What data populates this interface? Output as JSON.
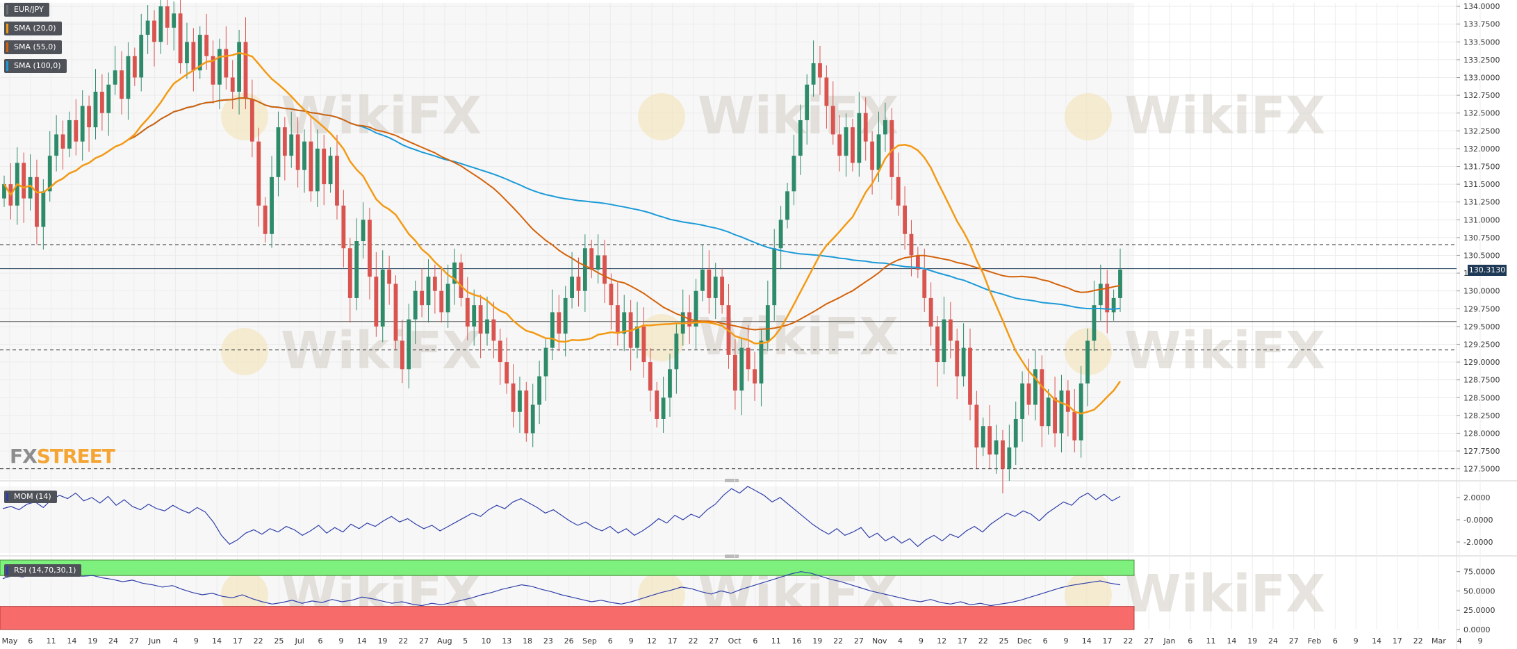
{
  "symbol": "EUR/JPY",
  "legend": [
    {
      "label": "EUR/JPY",
      "color": "#4f5258"
    },
    {
      "label": "SMA (20,0)",
      "color": "#f39a14"
    },
    {
      "label": "SMA (55,0)",
      "color": "#d4620a"
    },
    {
      "label": "SMA (100,0)",
      "color": "#1b9ad8"
    }
  ],
  "price_label": "130.3130",
  "brand": {
    "fx": "FX",
    "street": "STREET"
  },
  "watermark": "WikiFX",
  "mom_label": "MOM (14)",
  "rsi_label": "RSI (14,70,30,1)",
  "colors": {
    "up": "#2e8b6a",
    "down": "#d9534f",
    "sma20": "#f39a14",
    "sma55": "#d4620a",
    "sma100": "#1b9ad8",
    "osc": "#2f3fa8",
    "rsi_over": "#7df07d",
    "rsi_under": "#f76b6b"
  },
  "chart_data": [
    {
      "type": "candlestick",
      "title": "",
      "ylim": [
        127.35,
        134.05
      ],
      "y_ticks": [
        "134.0000",
        "133.7500",
        "133.5000",
        "133.2500",
        "133.0000",
        "132.7500",
        "132.5000",
        "132.2500",
        "132.0000",
        "131.7500",
        "131.5000",
        "131.2500",
        "131.0000",
        "130.7500",
        "130.5000",
        "130.2500",
        "130.0000",
        "129.7500",
        "129.5000",
        "129.2500",
        "129.0000",
        "128.7500",
        "128.5000",
        "128.2500",
        "128.0000",
        "127.7500",
        "127.5000"
      ],
      "last_price": 130.313,
      "horizontal_lines": [
        {
          "value": 130.65,
          "style": "dashed"
        },
        {
          "value": 130.313,
          "style": "solid-blue"
        },
        {
          "value": 129.57,
          "style": "solid"
        },
        {
          "value": 129.17,
          "style": "dashed"
        },
        {
          "value": 127.5,
          "style": "dashed"
        }
      ],
      "x_labels": [
        "May",
        "6",
        "11",
        "14",
        "19",
        "24",
        "27",
        "Jun",
        "4",
        "9",
        "14",
        "17",
        "22",
        "25",
        "Jul",
        "6",
        "9",
        "14",
        "19",
        "22",
        "27",
        "Aug",
        "5",
        "10",
        "13",
        "18",
        "23",
        "26",
        "Sep",
        "6",
        "9",
        "12",
        "17",
        "22",
        "27",
        "Oct",
        "6",
        "11",
        "16",
        "19",
        "22",
        "27",
        "Nov",
        "4",
        "9",
        "12",
        "17",
        "22",
        "25",
        "Dec",
        "6",
        "9",
        "14",
        "17",
        "22",
        "27",
        "Jan",
        "6",
        "11",
        "14",
        "19",
        "24",
        "27",
        "Feb",
        "6",
        "9",
        "14",
        "17",
        "22",
        "Mar",
        "4",
        "9"
      ],
      "closes": [
        131.5,
        131.2,
        131.8,
        131.3,
        131.6,
        130.9,
        131.4,
        131.9,
        132.2,
        132.0,
        132.4,
        132.1,
        132.6,
        132.3,
        132.8,
        132.5,
        132.9,
        133.1,
        132.7,
        133.3,
        133.0,
        133.6,
        133.8,
        133.5,
        134.0,
        133.7,
        133.9,
        133.2,
        133.5,
        133.1,
        133.6,
        133.3,
        132.9,
        133.4,
        133.0,
        132.8,
        133.5,
        132.7,
        132.1,
        131.2,
        130.8,
        131.6,
        132.3,
        131.9,
        132.2,
        131.7,
        132.1,
        131.4,
        132.0,
        131.5,
        131.9,
        131.2,
        130.6,
        129.9,
        130.7,
        131.0,
        130.2,
        129.5,
        130.3,
        130.1,
        129.3,
        128.9,
        129.6,
        130.0,
        129.8,
        130.2,
        130.0,
        129.7,
        130.1,
        130.4,
        129.9,
        129.5,
        129.8,
        129.4,
        129.6,
        129.3,
        129.0,
        128.7,
        128.3,
        128.6,
        128.0,
        128.4,
        128.8,
        129.2,
        129.7,
        129.4,
        129.9,
        130.2,
        130.0,
        130.6,
        130.3,
        130.5,
        130.1,
        129.8,
        129.4,
        129.7,
        129.2,
        129.5,
        129.0,
        128.6,
        128.2,
        128.5,
        128.9,
        129.4,
        129.7,
        129.5,
        130.0,
        130.3,
        129.9,
        130.2,
        129.8,
        129.1,
        128.6,
        129.2,
        128.9,
        128.7,
        129.3,
        129.8,
        130.6,
        131.0,
        131.4,
        131.9,
        132.4,
        132.9,
        133.2,
        133.0,
        132.6,
        132.2,
        131.9,
        132.3,
        131.8,
        132.5,
        132.1,
        131.7,
        132.2,
        132.4,
        131.6,
        131.2,
        130.8,
        130.5,
        130.3,
        129.9,
        129.5,
        129.0,
        129.6,
        129.3,
        128.8,
        129.2,
        128.4,
        127.8,
        128.1,
        127.7,
        127.9,
        127.5,
        127.8,
        128.2,
        128.7,
        128.4,
        128.9,
        128.1,
        128.5,
        128.0,
        128.6,
        128.3,
        127.9,
        128.7,
        129.3,
        129.8,
        130.1,
        129.7,
        129.9,
        130.3
      ]
    },
    {
      "type": "line",
      "name_label": "MOM (14)",
      "ylim": [
        -3.0,
        3.0
      ],
      "y_ticks": [
        "2.0000",
        "-0.0000",
        "-2.0000"
      ],
      "values": [
        1.0,
        1.2,
        0.9,
        1.4,
        1.6,
        1.1,
        1.8,
        2.2,
        1.9,
        2.4,
        1.7,
        2.0,
        1.5,
        2.1,
        1.3,
        1.8,
        1.2,
        0.9,
        1.4,
        1.0,
        0.8,
        1.3,
        0.9,
        0.6,
        1.1,
        0.7,
        -0.2,
        -1.4,
        -2.2,
        -1.8,
        -1.2,
        -0.9,
        -1.3,
        -0.8,
        -1.1,
        -0.6,
        -0.9,
        -1.4,
        -1.0,
        -0.5,
        -1.2,
        -0.7,
        -1.1,
        -0.4,
        -0.8,
        -0.3,
        -0.6,
        -0.1,
        0.3,
        -0.2,
        0.1,
        -0.4,
        -0.8,
        -0.5,
        -1.0,
        -0.6,
        -0.2,
        0.2,
        0.6,
        0.3,
        0.9,
        1.3,
        1.0,
        1.6,
        1.9,
        1.5,
        1.1,
        0.6,
        0.9,
        0.4,
        -0.1,
        -0.5,
        -0.2,
        -0.7,
        -1.0,
        -0.6,
        -1.2,
        -0.8,
        -1.4,
        -1.0,
        -0.5,
        0.1,
        -0.3,
        0.4,
        0.0,
        0.5,
        0.2,
        0.9,
        1.4,
        2.2,
        2.8,
        2.4,
        3.0,
        2.6,
        2.2,
        1.6,
        2.0,
        1.4,
        0.8,
        0.2,
        -0.4,
        -0.9,
        -1.3,
        -0.8,
        -1.4,
        -1.1,
        -0.7,
        -1.6,
        -1.2,
        -1.9,
        -1.5,
        -2.1,
        -1.7,
        -2.4,
        -1.8,
        -1.4,
        -1.9,
        -1.3,
        -1.6,
        -1.0,
        -0.6,
        -1.1,
        -0.4,
        0.1,
        0.6,
        0.3,
        0.8,
        0.5,
        -0.1,
        0.6,
        1.1,
        1.6,
        1.3,
        2.0,
        2.4,
        1.8,
        2.3,
        1.7,
        2.1
      ]
    },
    {
      "type": "line",
      "name_label": "RSI (14,70,30,1)",
      "ylim": [
        0,
        90
      ],
      "y_ticks": [
        "75.0000",
        "50.0000",
        "25.0000",
        "0.0000"
      ],
      "overbought": 70,
      "oversold": 30,
      "values": [
        66,
        70,
        68,
        72,
        74,
        70,
        73,
        71,
        69,
        70,
        67,
        65,
        62,
        64,
        60,
        58,
        55,
        57,
        52,
        48,
        45,
        47,
        43,
        41,
        45,
        40,
        36,
        33,
        35,
        38,
        34,
        37,
        35,
        39,
        36,
        38,
        42,
        40,
        37,
        34,
        36,
        33,
        31,
        34,
        32,
        35,
        38,
        41,
        45,
        48,
        52,
        55,
        58,
        56,
        52,
        49,
        45,
        42,
        39,
        36,
        38,
        35,
        33,
        36,
        40,
        44,
        48,
        51,
        55,
        53,
        49,
        46,
        50,
        47,
        52,
        56,
        60,
        64,
        68,
        72,
        75,
        73,
        69,
        65,
        62,
        58,
        54,
        50,
        47,
        44,
        41,
        38,
        36,
        39,
        35,
        33,
        36,
        32,
        34,
        31,
        33,
        35,
        38,
        42,
        46,
        50,
        54,
        57,
        59,
        61,
        63,
        60,
        58
      ]
    }
  ]
}
